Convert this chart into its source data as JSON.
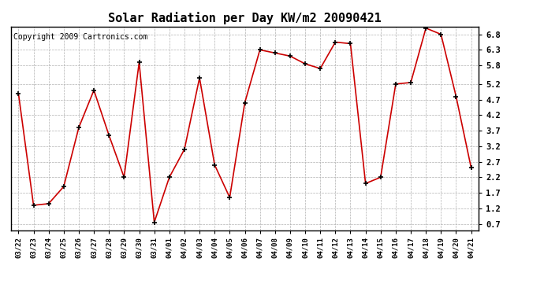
{
  "title": "Solar Radiation per Day KW/m2 20090421",
  "copyright_text": "Copyright 2009 Cartronics.com",
  "dates": [
    "03/22",
    "03/23",
    "03/24",
    "03/25",
    "03/26",
    "03/27",
    "03/28",
    "03/29",
    "03/30",
    "03/31",
    "04/01",
    "04/02",
    "04/03",
    "04/04",
    "04/05",
    "04/06",
    "04/07",
    "04/08",
    "04/09",
    "04/10",
    "04/11",
    "04/12",
    "04/13",
    "04/14",
    "04/15",
    "04/16",
    "04/17",
    "04/18",
    "04/19",
    "04/20",
    "04/21"
  ],
  "values": [
    4.9,
    1.3,
    1.35,
    1.9,
    3.8,
    5.0,
    3.55,
    2.2,
    5.9,
    0.75,
    2.2,
    3.1,
    5.4,
    2.6,
    1.55,
    4.6,
    6.3,
    6.2,
    6.1,
    5.85,
    5.7,
    6.55,
    6.5,
    2.0,
    2.2,
    5.2,
    5.25,
    7.0,
    6.8,
    4.8,
    2.5
  ],
  "line_color": "#cc0000",
  "marker_color": "#000000",
  "bg_color": "#ffffff",
  "grid_color": "#b0b0b0",
  "yticks": [
    0.7,
    1.2,
    1.7,
    2.2,
    2.7,
    3.2,
    3.7,
    4.2,
    4.7,
    5.2,
    5.8,
    6.3,
    6.8
  ],
  "ylim": [
    0.5,
    7.05
  ],
  "title_fontsize": 11,
  "copyright_fontsize": 7,
  "tick_fontsize": 7.5,
  "xtick_fontsize": 6.5
}
